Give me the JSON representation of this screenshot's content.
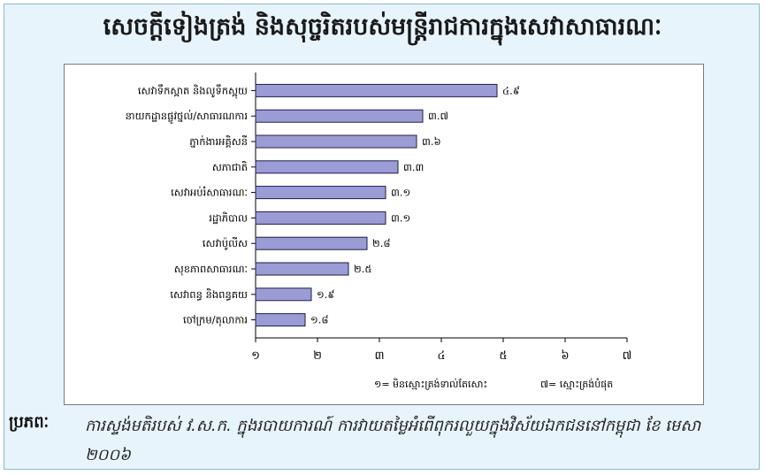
{
  "title": "សេចក្តីទៀងត្រង់ និងសុច្ចរិតរបស់មន្ត្រីរាជការក្នុងសេវាសាធារណៈ",
  "source": {
    "label": "ប្រភពៈ",
    "text": "ការស្ទង់មតិរបស់ វ.ស.ក. ក្នុងរបាយការណ៍ ការវាយតម្លៃអំពើពុករលួយក្នុងវិស័យឯកជននៅកម្ពុជា ខែ មេសា ២០០៦"
  },
  "chart_data": {
    "type": "bar",
    "orientation": "horizontal",
    "title": "",
    "xlabel": "",
    "ylabel": "",
    "xlim": [
      1,
      7
    ],
    "xticks": [
      1,
      2,
      3,
      4,
      5,
      6,
      7
    ],
    "xtick_labels": [
      "១",
      "២",
      "៣",
      "៤",
      "៥",
      "៦",
      "៧"
    ],
    "categories": [
      "សេវាទឹកស្អាត និងលូទឹកស្អុយ",
      "នាយកដ្ឋានផ្លូវថ្នល់/សាធារណការ",
      "ភ្នាក់ងារអគ្គិសនី",
      "សភាជាតិ",
      "សេវាអប់រំសាធារណៈ",
      "រដ្ឋាភិបាល",
      "សេវាប៉ូលីស",
      "សុខភាពសាធារណៈ",
      "សេវាពន្ធ និងពន្ធគយ",
      "ចៅក្រម/តុលាការ"
    ],
    "values": [
      4.9,
      3.7,
      3.6,
      3.3,
      3.1,
      3.1,
      2.8,
      2.5,
      1.9,
      1.8
    ],
    "value_labels": [
      "៤.៩",
      "៣.៧",
      "៣.៦",
      "៣.៣",
      "៣.១",
      "៣.១",
      "២.៨",
      "២.៥",
      "១.៩",
      "១.៨"
    ],
    "bar_color": "#9b9bd6",
    "bar_edge": "#1f1f4a",
    "scale_note": {
      "low": "១= មិនស្មោះត្រង់ទាល់តែសោះ",
      "high": "៧= ស្មោះត្រង់បំផុត"
    },
    "grid": false
  }
}
